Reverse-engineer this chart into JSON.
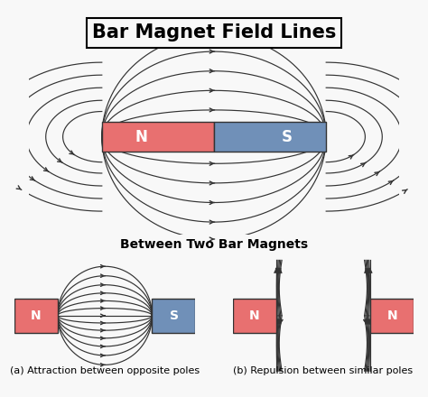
{
  "title": "Bar Magnet Field Lines",
  "subtitle": "Between Two Bar Magnets",
  "caption_a": "(a) Attraction between opposite poles",
  "caption_b": "(b) Repulsion between similar poles",
  "north_color": "#E87070",
  "south_color": "#7090B8",
  "bg_color": "#F8F8F8",
  "line_color": "#333333",
  "label_color": "#FFFFFF",
  "title_fontsize": 15,
  "subtitle_fontsize": 10,
  "caption_fontsize": 8
}
